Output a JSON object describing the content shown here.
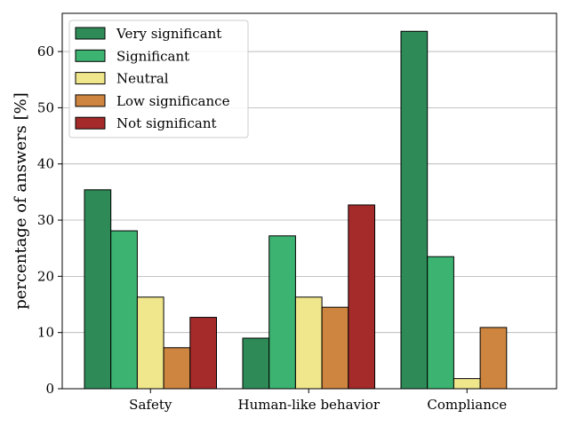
{
  "chart_data": {
    "type": "bar",
    "title": "",
    "xlabel": "",
    "ylabel": "percentage of answers [%]",
    "categories": [
      "Safety",
      "Human-like behavior",
      "Compliance"
    ],
    "ylim": [
      0,
      66.8
    ],
    "yticks": [
      "0",
      "10",
      "20",
      "30",
      "40",
      "50",
      "60"
    ],
    "grid": "horizontal",
    "legend_position": "top-left",
    "series": [
      {
        "name": "Very significant",
        "color": "#2e8b57",
        "values": [
          35.4,
          9.0,
          63.6
        ]
      },
      {
        "name": "Significant",
        "color": "#3cb371",
        "values": [
          28.1,
          27.2,
          23.5
        ]
      },
      {
        "name": "Neutral",
        "color": "#f0e68c",
        "values": [
          16.3,
          16.3,
          1.8
        ]
      },
      {
        "name": "Low significance",
        "color": "#cd853f",
        "values": [
          7.3,
          14.5,
          10.9
        ]
      },
      {
        "name": "Not significant",
        "color": "#a52a2a",
        "values": [
          12.7,
          32.7,
          0.0
        ]
      }
    ]
  }
}
